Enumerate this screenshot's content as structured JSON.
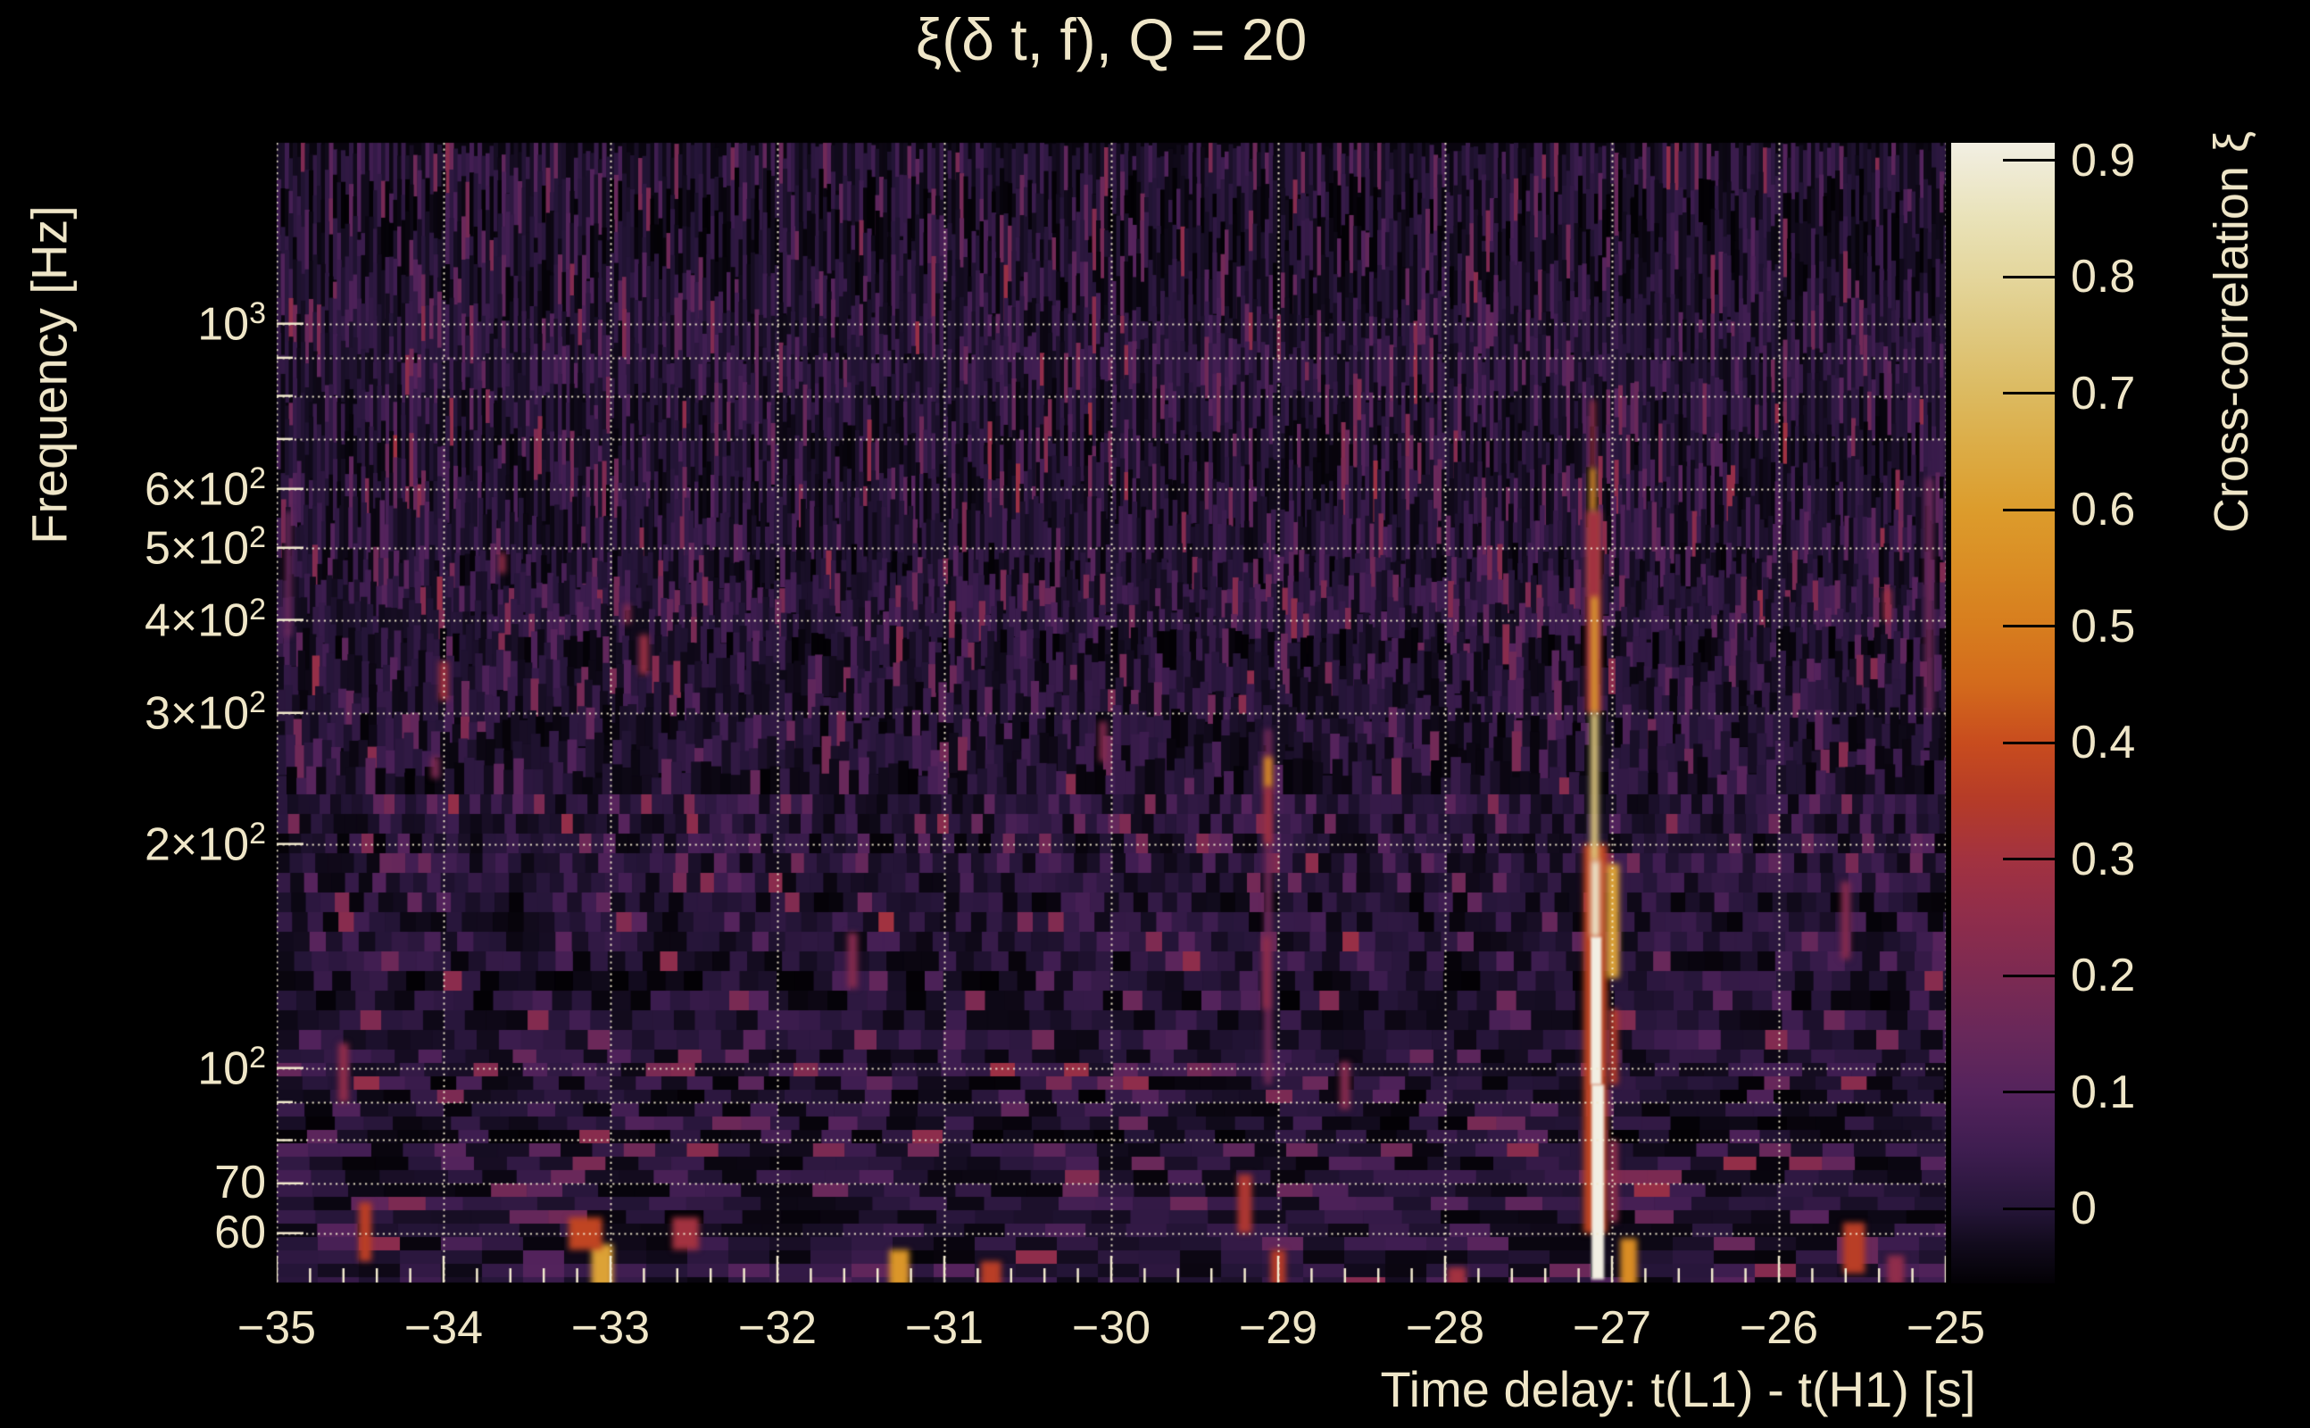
{
  "figure": {
    "background": "#000000",
    "text_color": "#efe6c8",
    "grid_color": "#f2eace"
  },
  "chart_data": {
    "type": "heatmap",
    "title": "ξ(δ t, f), Q = 20",
    "xlabel": "Time delay: t(L1) - t(H1) [s]",
    "ylabel": "Frequency [Hz]",
    "xlim": [
      -35,
      -25
    ],
    "ylim_hz": [
      51.5,
      1750
    ],
    "yscale": "log",
    "grid": true,
    "x_ticks": [
      {
        "t": -35,
        "label": "−35"
      },
      {
        "t": -34,
        "label": "−34"
      },
      {
        "t": -33,
        "label": "−33"
      },
      {
        "t": -32,
        "label": "−32"
      },
      {
        "t": -31,
        "label": "−31"
      },
      {
        "t": -30,
        "label": "−30"
      },
      {
        "t": -29,
        "label": "−29"
      },
      {
        "t": -28,
        "label": "−28"
      },
      {
        "t": -27,
        "label": "−27"
      },
      {
        "t": -26,
        "label": "−26"
      },
      {
        "t": -25,
        "label": "−25"
      }
    ],
    "x_minor_step": 0.2,
    "y_ticks": [
      {
        "f": 1000,
        "base": "10",
        "exp": "3"
      },
      {
        "f": 600,
        "base": "6×10",
        "exp": "2"
      },
      {
        "f": 500,
        "base": "5×10",
        "exp": "2"
      },
      {
        "f": 400,
        "base": "4×10",
        "exp": "2"
      },
      {
        "f": 300,
        "base": "3×10",
        "exp": "2"
      },
      {
        "f": 200,
        "base": "2×10",
        "exp": "2"
      },
      {
        "f": 100,
        "base": "10",
        "exp": "2"
      },
      {
        "f": 70,
        "base": "70"
      },
      {
        "f": 60,
        "base": "60"
      }
    ],
    "y_gridlines_hz": [
      60,
      70,
      80,
      90,
      100,
      200,
      300,
      400,
      500,
      600,
      700,
      800,
      900,
      1000
    ],
    "colorbar": {
      "label": "Cross-correlation ξ",
      "vmin": -0.064,
      "vmax": 0.915,
      "ticks": [
        {
          "v": 0.9,
          "label": "0.9"
        },
        {
          "v": 0.8,
          "label": "0.8"
        },
        {
          "v": 0.7,
          "label": "0.7"
        },
        {
          "v": 0.6,
          "label": "0.6"
        },
        {
          "v": 0.5,
          "label": "0.5"
        },
        {
          "v": 0.4,
          "label": "0.4"
        },
        {
          "v": 0.3,
          "label": "0.3"
        },
        {
          "v": 0.2,
          "label": "0.2"
        },
        {
          "v": 0.1,
          "label": "0.1"
        },
        {
          "v": 0.0,
          "label": "0"
        }
      ],
      "colormap_stops": [
        [
          -0.064,
          "#030105"
        ],
        [
          -0.03,
          "#120b1d"
        ],
        [
          0.0,
          "#251538"
        ],
        [
          0.05,
          "#3e1d50"
        ],
        [
          0.1,
          "#54235c"
        ],
        [
          0.15,
          "#68285a"
        ],
        [
          0.2,
          "#7c2a52"
        ],
        [
          0.25,
          "#8f2d4b"
        ],
        [
          0.3,
          "#a23240"
        ],
        [
          0.35,
          "#b53b28"
        ],
        [
          0.4,
          "#c84c1e"
        ],
        [
          0.45,
          "#d36a1c"
        ],
        [
          0.5,
          "#d77d1e"
        ],
        [
          0.55,
          "#da8d24"
        ],
        [
          0.6,
          "#dc9c2c"
        ],
        [
          0.65,
          "#dcab44"
        ],
        [
          0.7,
          "#dcba60"
        ],
        [
          0.75,
          "#dfc87e"
        ],
        [
          0.8,
          "#e4d69c"
        ],
        [
          0.85,
          "#e9e2b8"
        ],
        [
          0.915,
          "#f2efe3"
        ]
      ]
    },
    "noise": {
      "seed": 20,
      "floor": -0.055,
      "amp1": 0.1,
      "amp2": 0.24,
      "pink_prob": 0.0045
    },
    "features": [
      {
        "t": -27.115,
        "f1": 640,
        "f2": 790,
        "v": 0.3,
        "w": 0.027
      },
      {
        "t": -27.115,
        "f1": 560,
        "f2": 640,
        "v": 0.55,
        "w": 0.038
      },
      {
        "t": -27.11,
        "f1": 430,
        "f2": 560,
        "v": 0.68,
        "w": 0.043
      },
      {
        "t": -27.11,
        "f1": 300,
        "f2": 560,
        "v": 0.3,
        "w": 0.09
      },
      {
        "t": -27.105,
        "f1": 300,
        "f2": 430,
        "v": 0.6,
        "w": 0.043
      },
      {
        "t": -27.1,
        "f1": 60,
        "f2": 200,
        "v": 0.38,
        "w": 0.14
      },
      {
        "t": -27.105,
        "f1": 190,
        "f2": 300,
        "v": 0.75,
        "w": 0.048
      },
      {
        "t": -27.1,
        "f1": 150,
        "f2": 190,
        "v": 0.88,
        "w": 0.055
      },
      {
        "t": -27.095,
        "f1": 95,
        "f2": 150,
        "v": 0.97,
        "w": 0.065
      },
      {
        "t": -27.085,
        "f1": 52,
        "f2": 95,
        "v": 0.99,
        "w": 0.075
      },
      {
        "t": -26.995,
        "f1": 132,
        "f2": 188,
        "v": 0.62,
        "w": 0.075
      },
      {
        "t": -26.99,
        "f1": 95,
        "f2": 120,
        "v": 0.35,
        "w": 0.05
      },
      {
        "t": -26.99,
        "f1": 62,
        "f2": 80,
        "v": 0.25,
        "w": 0.05
      },
      {
        "t": -26.9,
        "f1": 51,
        "f2": 59,
        "v": 0.55,
        "w": 0.1
      },
      {
        "t": -29.06,
        "f1": 95,
        "f2": 285,
        "v": 0.17,
        "w": 0.045
      },
      {
        "t": -29.06,
        "f1": 238,
        "f2": 262,
        "v": 0.55,
        "w": 0.048
      },
      {
        "t": -29.06,
        "f1": 200,
        "f2": 238,
        "v": 0.3,
        "w": 0.045
      },
      {
        "t": -29.07,
        "f1": 120,
        "f2": 150,
        "v": 0.25,
        "w": 0.045
      },
      {
        "t": -29.2,
        "f1": 60,
        "f2": 72,
        "v": 0.33,
        "w": 0.085
      },
      {
        "t": -29.0,
        "f1": 51,
        "f2": 57,
        "v": 0.35,
        "w": 0.09
      },
      {
        "t": -34.47,
        "f1": 55,
        "f2": 66,
        "v": 0.36,
        "w": 0.075
      },
      {
        "t": -34.6,
        "f1": 90,
        "f2": 108,
        "v": 0.25,
        "w": 0.06
      },
      {
        "t": -33.05,
        "f1": 50,
        "f2": 58,
        "v": 0.62,
        "w": 0.13
      },
      {
        "t": -33.15,
        "f1": 57,
        "f2": 63,
        "v": 0.38,
        "w": 0.2
      },
      {
        "t": -32.55,
        "f1": 57,
        "f2": 63,
        "v": 0.3,
        "w": 0.16
      },
      {
        "t": -31.27,
        "f1": 50,
        "f2": 57,
        "v": 0.58,
        "w": 0.12
      },
      {
        "t": -30.72,
        "f1": 50,
        "f2": 55,
        "v": 0.36,
        "w": 0.12
      },
      {
        "t": -27.93,
        "f1": 50,
        "f2": 54,
        "v": 0.3,
        "w": 0.11
      },
      {
        "t": -25.55,
        "f1": 53,
        "f2": 62,
        "v": 0.36,
        "w": 0.13
      },
      {
        "t": -25.3,
        "f1": 51,
        "f2": 56,
        "v": 0.25,
        "w": 0.1
      },
      {
        "t": -34.0,
        "f1": 312,
        "f2": 352,
        "v": 0.3,
        "w": 0.055
      },
      {
        "t": -34.05,
        "f1": 245,
        "f2": 262,
        "v": 0.2,
        "w": 0.05
      },
      {
        "t": -33.65,
        "f1": 462,
        "f2": 492,
        "v": 0.26,
        "w": 0.042
      },
      {
        "t": -32.8,
        "f1": 338,
        "f2": 382,
        "v": 0.28,
        "w": 0.055
      },
      {
        "t": -32.9,
        "f1": 395,
        "f2": 420,
        "v": 0.22,
        "w": 0.04
      },
      {
        "t": -30.05,
        "f1": 258,
        "f2": 292,
        "v": 0.22,
        "w": 0.045
      },
      {
        "t": -31.55,
        "f1": 128,
        "f2": 152,
        "v": 0.22,
        "w": 0.06
      },
      {
        "t": -28.6,
        "f1": 88,
        "f2": 102,
        "v": 0.22,
        "w": 0.06
      },
      {
        "t": -25.35,
        "f1": 398,
        "f2": 440,
        "v": 0.28,
        "w": 0.045
      },
      {
        "t": -25.6,
        "f1": 140,
        "f2": 178,
        "v": 0.22,
        "w": 0.055
      },
      {
        "t": -25.1,
        "f1": 300,
        "f2": 620,
        "v": 0.16,
        "w": 0.05
      },
      {
        "t": -34.93,
        "f1": 380,
        "f2": 560,
        "v": 0.15,
        "w": 0.04
      }
    ]
  }
}
